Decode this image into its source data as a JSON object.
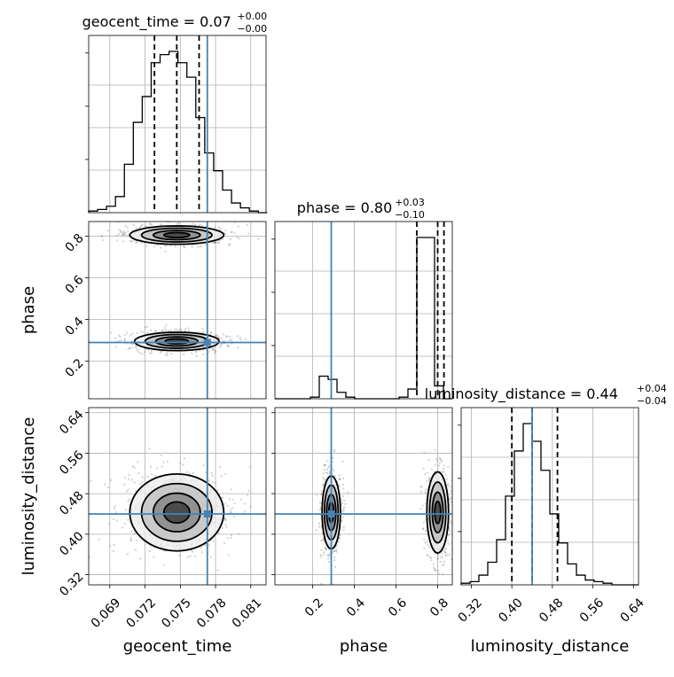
{
  "chart_data": {
    "type": "corner",
    "parameters": [
      "geocent_time",
      "phase",
      "luminosity_distance"
    ],
    "axis_labels": [
      "geocent_time",
      "phase",
      "luminosity_distance"
    ],
    "titles": [
      {
        "prefix": "geocent_time = 0.07",
        "sup": "+0.00",
        "sub": "−0.00"
      },
      {
        "prefix": "phase = 0.80",
        "sup": "+0.03",
        "sub": "−0.10"
      },
      {
        "prefix": "luminosity_distance = 0.44",
        "sup": "+0.04",
        "sub": "−0.04"
      }
    ],
    "ranges": [
      [
        0.0672,
        0.0823
      ],
      [
        0.02,
        0.87
      ],
      [
        0.3,
        0.65
      ]
    ],
    "ticks": [
      {
        "values": [
          0.069,
          0.072,
          0.075,
          0.078,
          0.081
        ],
        "labels": [
          "0.069",
          "0.072",
          "0.075",
          "0.078",
          "0.081"
        ]
      },
      {
        "values": [
          0.2,
          0.4,
          0.6,
          0.8
        ],
        "labels": [
          "0.2",
          "0.4",
          "0.6",
          "0.8"
        ]
      },
      {
        "values": [
          0.32,
          0.4,
          0.48,
          0.56,
          0.64
        ],
        "labels": [
          "0.32",
          "0.40",
          "0.48",
          "0.56",
          "0.64"
        ]
      }
    ],
    "truths": [
      0.0773,
      0.29,
      0.44
    ],
    "quantiles": [
      [
        0.0728,
        0.0747,
        0.0766
      ],
      [
        0.7,
        0.8,
        0.83
      ],
      [
        0.4,
        0.44,
        0.49
      ]
    ],
    "histograms": [
      {
        "edges_start": 0.0672,
        "bin_width": 0.00076,
        "counts": [
          0.01,
          0.02,
          0.04,
          0.1,
          0.3,
          0.56,
          0.72,
          0.93,
          0.98,
          1.0,
          0.93,
          0.84,
          0.59,
          0.37,
          0.26,
          0.14,
          0.06,
          0.03,
          0.01,
          0.0
        ]
      },
      {
        "edges_start": 0.02,
        "bin_width": 0.0425,
        "counts": [
          0,
          0,
          0,
          0,
          0.01,
          0.14,
          0.12,
          0.04,
          0.01,
          0,
          0,
          0,
          0,
          0,
          0.01,
          0.06,
          1.0,
          1.0,
          0.08,
          0
        ]
      },
      {
        "edges_start": 0.3,
        "bin_width": 0.0175,
        "counts": [
          0.01,
          0.02,
          0.06,
          0.14,
          0.28,
          0.55,
          0.83,
          1.0,
          0.89,
          0.71,
          0.44,
          0.26,
          0.13,
          0.06,
          0.03,
          0.02,
          0.01,
          0.0,
          0,
          0
        ]
      }
    ],
    "blobs": [
      {
        "panel": [
          1,
          0
        ],
        "cx": 0.0747,
        "cy": 0.805,
        "sx": 0.002,
        "sy": 0.022
      },
      {
        "panel": [
          1,
          0
        ],
        "cx": 0.0747,
        "cy": 0.295,
        "sx": 0.0018,
        "sy": 0.022
      },
      {
        "panel": [
          2,
          0
        ],
        "cx": 0.0747,
        "cy": 0.443,
        "sx": 0.002,
        "sy": 0.038
      },
      {
        "panel": [
          2,
          1
        ],
        "cx": 0.29,
        "cy": 0.443,
        "sx": 0.022,
        "sy": 0.036
      },
      {
        "panel": [
          2,
          1
        ],
        "cx": 0.8,
        "cy": 0.443,
        "sx": 0.026,
        "sy": 0.04
      }
    ],
    "colors": {
      "truth": "#4682b4",
      "line": "#000000",
      "grid": "#b0b0b0"
    }
  }
}
